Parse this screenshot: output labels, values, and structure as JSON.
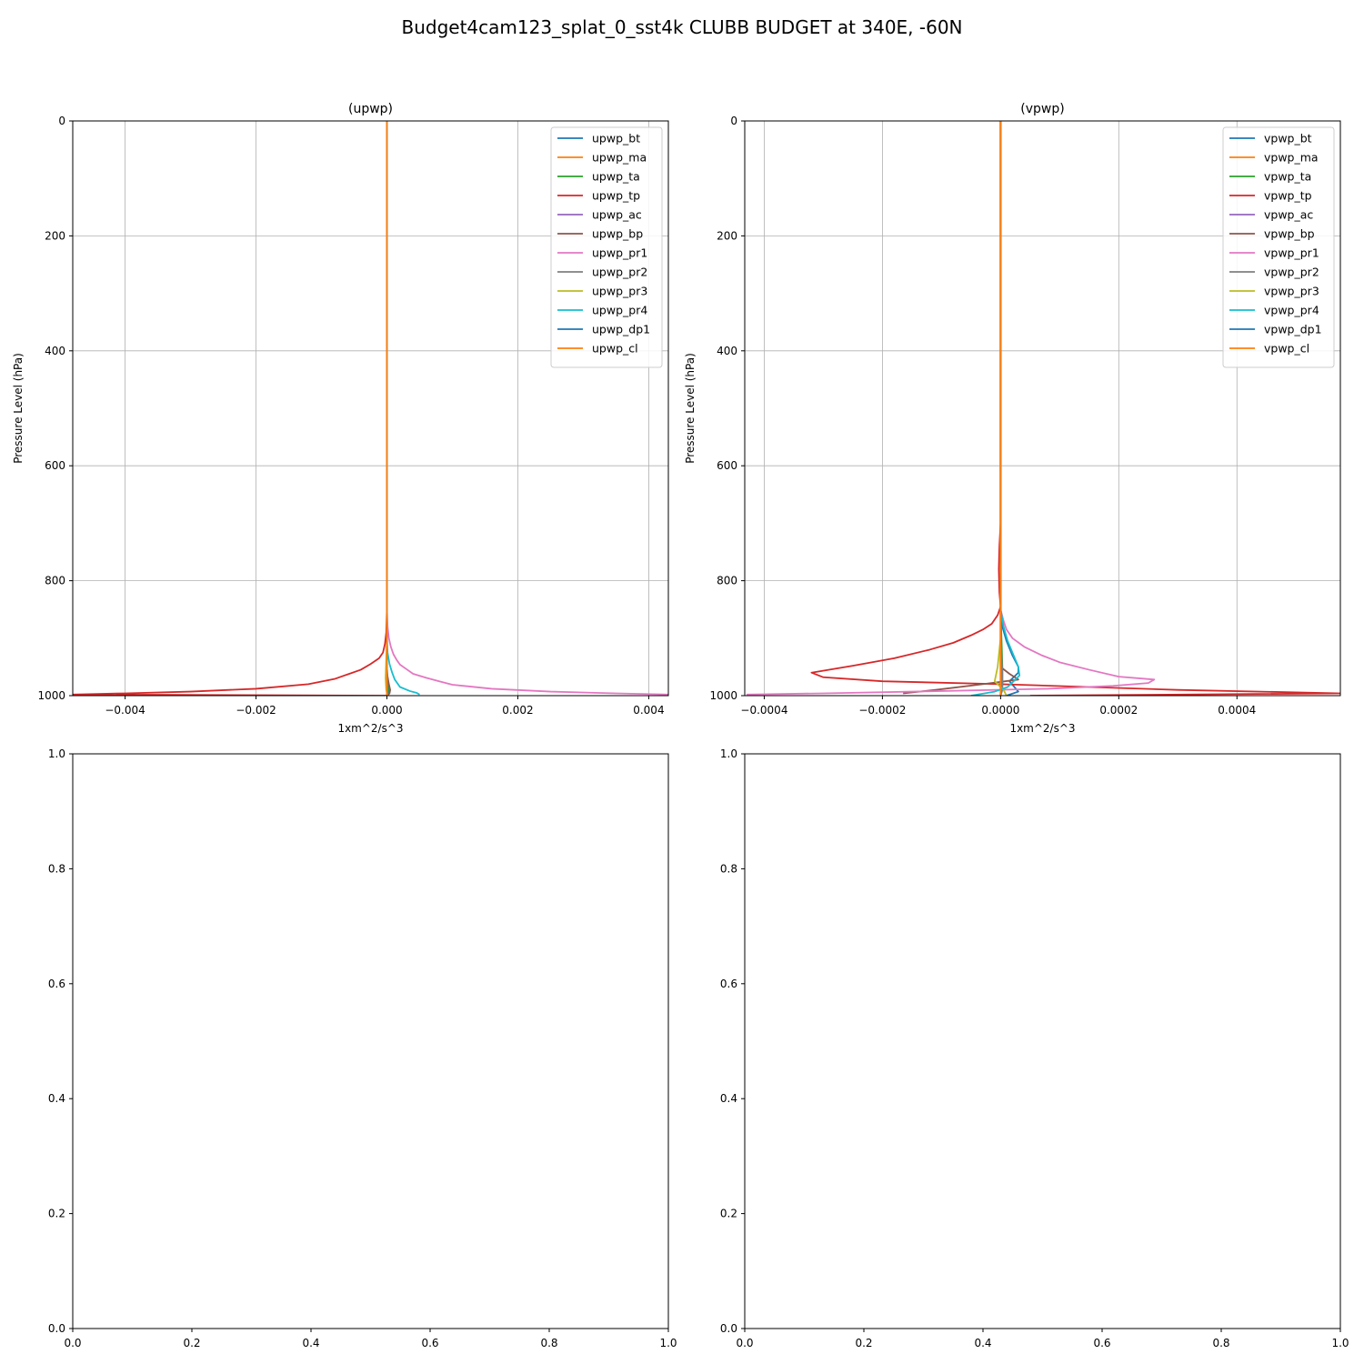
{
  "figure": {
    "title": "Budget4cam123_splat_0_sst4k CLUBB BUDGET at 340E, -60N"
  },
  "colors": {
    "bt": "#1f77b4",
    "ma": "#ff7f0e",
    "ta": "#2ca02c",
    "tp": "#d62728",
    "ac": "#9467bd",
    "bp": "#8c564b",
    "pr1": "#e377c2",
    "pr2": "#7f7f7f",
    "pr3": "#bcbd22",
    "pr4": "#17becf",
    "dp1": "#1f77b4",
    "cl": "#ff7f0e",
    "grid": "#b0b0b0"
  },
  "chart_data": [
    {
      "type": "line",
      "title": "(upwp)",
      "xlabel": "1xm^2/s^3",
      "ylabel": "Pressure Level (hPa)",
      "xlim": [
        -0.0048,
        0.0043
      ],
      "ylim": [
        1000,
        0
      ],
      "xticks": [
        -0.004,
        -0.002,
        0.0,
        0.002,
        0.004
      ],
      "xtick_labels": [
        "−0.004",
        "−0.002",
        "0.000",
        "0.002",
        "0.004"
      ],
      "yticks": [
        0,
        200,
        400,
        600,
        800,
        1000
      ],
      "ytick_labels": [
        "0",
        "200",
        "400",
        "600",
        "800",
        "1000"
      ],
      "grid": true,
      "legend_position": "upper right",
      "series": [
        {
          "name": "upwp_bt",
          "color_key": "bt",
          "x": [
            0,
            0,
            0,
            0,
            1e-05,
            2e-05,
            3e-05,
            2e-05,
            1e-05
          ],
          "y": [
            0,
            800,
            900,
            950,
            970,
            985,
            990,
            995,
            1000
          ]
        },
        {
          "name": "upwp_ma",
          "color_key": "ma",
          "x": [
            0,
            0,
            0,
            0,
            0,
            0
          ],
          "y": [
            0,
            800,
            900,
            950,
            990,
            1000
          ]
        },
        {
          "name": "upwp_ta",
          "color_key": "ta",
          "x": [
            0,
            0,
            0,
            0,
            1e-05,
            2e-05,
            1e-05,
            0
          ],
          "y": [
            0,
            800,
            900,
            950,
            980,
            990,
            995,
            1000
          ]
        },
        {
          "name": "upwp_tp",
          "color_key": "tp",
          "x": [
            0,
            0,
            -1e-05,
            -3e-05,
            -6e-05,
            -0.00012,
            -0.00025,
            -0.0004,
            -0.0006,
            -0.0008,
            -0.0012,
            -0.002,
            -0.003,
            -0.004,
            -0.0048,
            0
          ],
          "y": [
            0,
            850,
            890,
            910,
            925,
            935,
            945,
            955,
            963,
            971,
            980,
            988,
            993,
            996,
            998,
            1000
          ]
        },
        {
          "name": "upwp_ac",
          "color_key": "ac",
          "x": [
            0,
            0,
            0
          ],
          "y": [
            0,
            950,
            1000
          ]
        },
        {
          "name": "upwp_bp",
          "color_key": "bp",
          "x": [
            0,
            0,
            0,
            3e-05,
            5e-05,
            4e-05,
            1e-05
          ],
          "y": [
            0,
            900,
            960,
            980,
            990,
            996,
            1000
          ]
        },
        {
          "name": "upwp_pr1",
          "color_key": "pr1",
          "x": [
            0,
            0,
            1e-05,
            3e-05,
            6e-05,
            0.0001,
            0.00015,
            0.0002,
            0.0003,
            0.0004,
            0.0006,
            0.0008,
            0.001,
            0.0016,
            0.0025,
            0.0035,
            0.0043
          ],
          "y": [
            0,
            850,
            880,
            900,
            915,
            928,
            938,
            946,
            954,
            962,
            969,
            975,
            981,
            988,
            993,
            996,
            998
          ]
        },
        {
          "name": "upwp_pr2",
          "color_key": "pr2",
          "x": [
            0,
            0,
            0,
            0
          ],
          "y": [
            0,
            900,
            980,
            1000
          ]
        },
        {
          "name": "upwp_pr3",
          "color_key": "pr3",
          "x": [
            0,
            0,
            -2e-05,
            -1e-05,
            1e-05
          ],
          "y": [
            0,
            900,
            970,
            990,
            1000
          ]
        },
        {
          "name": "upwp_pr4",
          "color_key": "pr4",
          "x": [
            0,
            0,
            1e-05,
            4e-05,
            8e-05,
            0.00012,
            0.0002,
            0.00035,
            0.00045,
            0.0005
          ],
          "y": [
            0,
            900,
            925,
            945,
            960,
            972,
            985,
            992,
            995,
            998
          ]
        },
        {
          "name": "upwp_dp1",
          "color_key": "dp1",
          "x": [
            0,
            0,
            0
          ],
          "y": [
            0,
            950,
            1000
          ]
        },
        {
          "name": "upwp_cl",
          "color_key": "cl",
          "x": [
            0,
            0,
            0
          ],
          "y": [
            0,
            950,
            1000
          ]
        }
      ]
    },
    {
      "type": "line",
      "title": "(vpwp)",
      "xlabel": "1xm^2/s^3",
      "ylabel": "Pressure Level (hPa)",
      "xlim": [
        -0.000433,
        0.000575
      ],
      "ylim": [
        1000,
        0
      ],
      "xticks": [
        -0.0004,
        -0.0002,
        0.0,
        0.0002,
        0.0004
      ],
      "xtick_labels": [
        "−0.0004",
        "−0.0002",
        "0.0000",
        "0.0002",
        "0.0004"
      ],
      "yticks": [
        0,
        200,
        400,
        600,
        800,
        1000
      ],
      "ytick_labels": [
        "0",
        "200",
        "400",
        "600",
        "800",
        "1000"
      ],
      "grid": true,
      "legend_position": "upper right",
      "series": [
        {
          "name": "vpwp_bt",
          "color_key": "bt",
          "x": [
            0,
            0,
            3e-06,
            1e-05,
            2e-05,
            3e-05,
            3e-05,
            1.5e-05,
            3e-05,
            1e-05
          ],
          "y": [
            0,
            850,
            880,
            905,
            930,
            950,
            960,
            975,
            993,
            1000
          ]
        },
        {
          "name": "vpwp_ma",
          "color_key": "ma",
          "x": [
            0,
            0,
            0,
            0
          ],
          "y": [
            0,
            850,
            950,
            1000
          ]
        },
        {
          "name": "vpwp_ta",
          "color_key": "ta",
          "x": [
            0,
            0,
            3e-06,
            3e-06,
            0
          ],
          "y": [
            0,
            850,
            950,
            985,
            1000
          ]
        },
        {
          "name": "vpwp_tp",
          "color_key": "tp",
          "x": [
            0,
            0,
            -2e-06,
            -3e-06,
            -2e-06,
            0,
            -5e-06,
            -1.5e-05,
            -3e-05,
            -5e-05,
            -8e-05,
            -0.00012,
            -0.00018,
            -0.00025,
            -0.00032,
            -0.0003,
            -0.0002,
            0,
            0.0003,
            0.000575,
            5e-05
          ],
          "y": [
            0,
            700,
            740,
            780,
            820,
            845,
            860,
            875,
            885,
            895,
            908,
            920,
            935,
            948,
            960,
            968,
            975,
            980,
            990,
            996,
            1000
          ]
        },
        {
          "name": "vpwp_ac",
          "color_key": "ac",
          "x": [
            0,
            0,
            0
          ],
          "y": [
            0,
            950,
            1000
          ]
        },
        {
          "name": "vpwp_bp",
          "color_key": "bp",
          "x": [
            0,
            0,
            0,
            1.5e-05,
            3e-05,
            -3e-05,
            -0.00011,
            -0.000165
          ],
          "y": [
            0,
            900,
            950,
            962,
            972,
            980,
            990,
            996
          ]
        },
        {
          "name": "vpwp_pr1",
          "color_key": "pr1",
          "x": [
            0,
            0,
            5e-06,
            1e-05,
            2e-05,
            4e-05,
            7e-05,
            0.0001,
            0.00015,
            0.0002,
            0.00026,
            0.00025,
            0.00019,
            8e-05,
            -0.0001,
            -0.0003,
            -0.00043
          ],
          "y": [
            0,
            850,
            870,
            885,
            900,
            915,
            930,
            942,
            955,
            967,
            972,
            978,
            983,
            988,
            992,
            996,
            998
          ]
        },
        {
          "name": "vpwp_pr2",
          "color_key": "pr2",
          "x": [
            0,
            0,
            3e-06,
            3e-06,
            0
          ],
          "y": [
            0,
            900,
            960,
            990,
            1000
          ]
        },
        {
          "name": "vpwp_pr3",
          "color_key": "pr3",
          "x": [
            0,
            0,
            -5e-06,
            -1e-05,
            5e-06,
            1e-05
          ],
          "y": [
            0,
            900,
            950,
            975,
            990,
            1000
          ]
        },
        {
          "name": "vpwp_pr4",
          "color_key": "pr4",
          "x": [
            0,
            0,
            5e-06,
            1.2e-05,
            2.2e-05,
            3e-05,
            3.2e-05,
            1.2e-05,
            -1e-05,
            -5e-05
          ],
          "y": [
            0,
            850,
            880,
            905,
            930,
            950,
            965,
            985,
            993,
            1000
          ]
        },
        {
          "name": "vpwp_dp1",
          "color_key": "dp1",
          "x": [
            0,
            0,
            0
          ],
          "y": [
            0,
            950,
            1000
          ]
        },
        {
          "name": "vpwp_cl",
          "color_key": "cl",
          "x": [
            0,
            0,
            0
          ],
          "y": [
            0,
            950,
            1000
          ]
        }
      ]
    },
    {
      "type": "line",
      "title": "",
      "xlim": [
        0,
        1
      ],
      "ylim": [
        0,
        1
      ],
      "xticks": [
        0,
        0.2,
        0.4,
        0.6,
        0.8,
        1.0
      ],
      "xtick_labels": [
        "0.0",
        "0.2",
        "0.4",
        "0.6",
        "0.8",
        "1.0"
      ],
      "yticks": [
        0,
        0.2,
        0.4,
        0.6,
        0.8,
        1.0
      ],
      "ytick_labels": [
        "0.0",
        "0.2",
        "0.4",
        "0.6",
        "0.8",
        "1.0"
      ],
      "grid": false,
      "series": []
    },
    {
      "type": "line",
      "title": "",
      "xlim": [
        0,
        1
      ],
      "ylim": [
        0,
        1
      ],
      "xticks": [
        0,
        0.2,
        0.4,
        0.6,
        0.8,
        1.0
      ],
      "xtick_labels": [
        "0.0",
        "0.2",
        "0.4",
        "0.6",
        "0.8",
        "1.0"
      ],
      "yticks": [
        0,
        0.2,
        0.4,
        0.6,
        0.8,
        1.0
      ],
      "ytick_labels": [
        "0.0",
        "0.2",
        "0.4",
        "0.6",
        "0.8",
        "1.0"
      ],
      "grid": false,
      "series": []
    }
  ]
}
